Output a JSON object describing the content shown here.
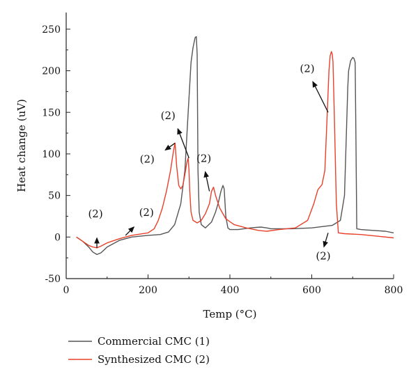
{
  "chart_data": {
    "type": "line",
    "title": "",
    "xlabel": "Temp (°C)",
    "ylabel": "Heat change (uV)",
    "xlim": [
      0,
      800
    ],
    "ylim": [
      -50,
      270
    ],
    "x_ticks": [
      0,
      200,
      400,
      600,
      800
    ],
    "y_ticks": [
      -50,
      0,
      50,
      100,
      150,
      200,
      250
    ],
    "grid": false,
    "legend_position": "bottom-left",
    "series": [
      {
        "name": "Commercial CMC (1)",
        "color": "#555555",
        "x": [
          25,
          40,
          55,
          65,
          75,
          85,
          100,
          130,
          160,
          200,
          230,
          250,
          265,
          280,
          290,
          298,
          305,
          310,
          315,
          318,
          320,
          322,
          325,
          330,
          340,
          355,
          365,
          372,
          378,
          383,
          386,
          390,
          395,
          400,
          420,
          450,
          475,
          490,
          500,
          550,
          600,
          650,
          670,
          680,
          685,
          688,
          690,
          695,
          700,
          703,
          706,
          708,
          710,
          720,
          750,
          780,
          800
        ],
        "y": [
          0,
          -5,
          -12,
          -18,
          -21,
          -19,
          -12,
          -4,
          0,
          2,
          3,
          6,
          15,
          40,
          80,
          150,
          210,
          228,
          240,
          241,
          220,
          80,
          30,
          15,
          11,
          18,
          30,
          42,
          55,
          62,
          58,
          25,
          11,
          9,
          9,
          11,
          12,
          11,
          10,
          10,
          11,
          14,
          20,
          50,
          130,
          180,
          200,
          212,
          216,
          215,
          210,
          120,
          10,
          9,
          8,
          7,
          5
        ]
      },
      {
        "name": "Synthesized CMC (2)",
        "color": "#e8402a",
        "x": [
          25,
          40,
          55,
          65,
          75,
          85,
          100,
          130,
          160,
          200,
          215,
          225,
          235,
          245,
          255,
          262,
          266,
          270,
          275,
          280,
          285,
          290,
          295,
          298,
          300,
          302,
          305,
          310,
          320,
          330,
          340,
          350,
          355,
          360,
          365,
          375,
          390,
          410,
          440,
          470,
          490,
          520,
          560,
          590,
          605,
          615,
          625,
          632,
          638,
          642,
          645,
          648,
          650,
          652,
          655,
          660,
          665,
          680,
          720,
          760,
          800
        ],
        "y": [
          0,
          -5,
          -10,
          -12,
          -13,
          -11,
          -7,
          -2,
          2,
          5,
          10,
          20,
          35,
          55,
          80,
          103,
          113,
          85,
          62,
          58,
          62,
          75,
          90,
          95,
          80,
          55,
          30,
          20,
          17,
          20,
          28,
          40,
          55,
          60,
          50,
          35,
          22,
          15,
          11,
          8,
          7,
          9,
          11,
          20,
          40,
          57,
          63,
          80,
          150,
          200,
          218,
          223,
          220,
          210,
          150,
          40,
          5,
          4,
          3,
          1,
          -1
        ]
      }
    ],
    "annotations": [
      {
        "text": "(2)",
        "near_x": 75,
        "near_y": -13
      },
      {
        "text": "(2)",
        "near_x": 145,
        "near_y": 2
      },
      {
        "text": "(2)",
        "near_x": 266,
        "near_y": 113
      },
      {
        "text": "(2)",
        "near_x": 300,
        "near_y": 95
      },
      {
        "text": "(2)",
        "near_x": 350,
        "near_y": 55
      },
      {
        "text": "(2)",
        "near_x": 640,
        "near_y": 150
      },
      {
        "text": "(2)",
        "near_x": 640,
        "near_y": 5
      }
    ]
  }
}
